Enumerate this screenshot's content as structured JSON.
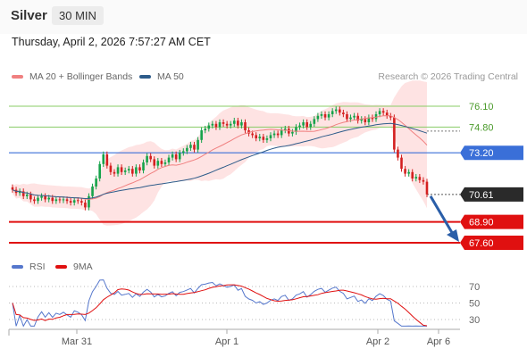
{
  "header": {
    "symbol": "Silver",
    "timeframe": "30 MIN",
    "timestamp": "Thursday, April 2, 2026 7:57:27 AM CET"
  },
  "legend": {
    "ma20_label": "MA 20 + Bollinger Bands",
    "ma50_label": "MA 50",
    "credit": "Research © 2026 Trading Central",
    "rsi_label": "RSI",
    "rsi_ma_label": "9MA"
  },
  "colors": {
    "up_candle": "#16a34a",
    "down_candle": "#d42020",
    "ma20": "#f08080",
    "ma50": "#2e5c8a",
    "bollinger_band": "#fdd9d9",
    "resistance": "#88cc66",
    "pivot": "#3a6fd8",
    "support": "#e01010",
    "forecast_arrow": "#2a5ea8",
    "rsi": "#5577cc",
    "rsi_ma": "#e01010"
  },
  "chart_data": {
    "type": "candlestick",
    "instrument": "Silver",
    "interval": "30 MIN",
    "x_tick_labels": [
      "Mar 31",
      "Apr 1",
      "Apr 2",
      "Apr 6"
    ],
    "price_levels": [
      {
        "value": 76.1,
        "label": "76.10",
        "kind": "resistance"
      },
      {
        "value": 74.8,
        "label": "74.80",
        "kind": "resistance"
      },
      {
        "value": 73.2,
        "label": "73.20",
        "kind": "pivot"
      },
      {
        "value": 70.61,
        "label": "70.61",
        "kind": "last_price"
      },
      {
        "value": 68.9,
        "label": "68.90",
        "kind": "support"
      },
      {
        "value": 67.6,
        "label": "67.60",
        "kind": "support"
      }
    ],
    "forecast_arrow": {
      "from": 70.61,
      "to": 67.6,
      "direction": "down"
    },
    "closes": [
      70.9,
      70.7,
      70.8,
      70.5,
      70.6,
      70.3,
      70.2,
      70.4,
      70.5,
      70.3,
      70.4,
      70.2,
      70.3,
      70.25,
      70.3,
      70.2,
      70.1,
      70.25,
      70.2,
      70.1,
      69.8,
      70.5,
      71.1,
      71.6,
      72.5,
      73.1,
      72.4,
      72.0,
      71.9,
      72.3,
      72.0,
      72.1,
      72.2,
      71.9,
      72.3,
      72.1,
      72.6,
      73.0,
      72.8,
      72.4,
      72.7,
      72.5,
      72.6,
      72.9,
      73.1,
      72.8,
      73.2,
      73.3,
      73.5,
      73.7,
      73.4,
      74.0,
      74.6,
      74.7,
      74.9,
      75.0,
      74.8,
      75.1,
      75.0,
      74.9,
      75.0,
      75.2,
      74.9,
      75.1,
      74.6,
      74.4,
      74.3,
      74.1,
      74.2,
      74.0,
      74.1,
      74.3,
      74.4,
      74.3,
      74.6,
      74.7,
      74.4,
      74.5,
      74.8,
      74.9,
      75.1,
      74.8,
      75.0,
      75.3,
      75.5,
      75.6,
      75.4,
      75.6,
      75.8,
      75.9,
      75.7,
      75.6,
      75.3,
      75.4,
      75.5,
      75.2,
      75.3,
      75.1,
      75.4,
      75.3,
      75.6,
      75.8,
      75.7,
      75.5,
      75.4,
      73.4,
      72.9,
      72.2,
      71.9,
      72.0,
      71.6,
      71.7,
      71.5,
      71.4,
      70.61
    ],
    "rsi": {
      "levels": [
        70,
        50,
        30
      ],
      "tick_labels": [
        "70",
        "50",
        "30"
      ],
      "ylim": [
        20,
        80
      ]
    }
  }
}
